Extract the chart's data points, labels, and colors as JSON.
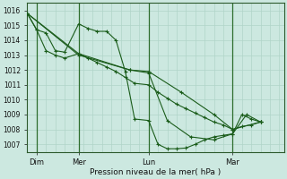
{
  "xlabel": "Pression niveau de la mer( hPa )",
  "background_color": "#cce8e0",
  "grid_color": "#b0d4c8",
  "line_color": "#1a5c1a",
  "ylim": [
    1006.5,
    1016.5
  ],
  "yticks": [
    1007,
    1008,
    1009,
    1010,
    1011,
    1012,
    1013,
    1014,
    1015,
    1016
  ],
  "day_labels": [
    "Dim",
    "Mer",
    "Lun",
    "Mar"
  ],
  "day_positions": [
    8,
    44,
    104,
    176
  ],
  "vline_positions": [
    8,
    44,
    104,
    176
  ],
  "xlim": [
    0,
    220
  ],
  "line1_x": [
    0,
    8,
    16,
    24,
    32,
    44,
    52,
    60,
    68,
    76,
    84,
    92,
    104,
    112,
    120,
    128,
    136,
    144,
    152,
    160,
    168,
    176,
    184,
    192,
    200
  ],
  "line1_y": [
    1015.8,
    1014.7,
    1014.5,
    1013.3,
    1013.2,
    1015.1,
    1014.8,
    1014.6,
    1014.6,
    1014.0,
    1011.9,
    1008.7,
    1008.6,
    1007.0,
    1006.7,
    1006.7,
    1006.75,
    1007.0,
    1007.3,
    1007.5,
    1007.6,
    1007.7,
    1009.0,
    1008.7,
    1008.5
  ],
  "line2_x": [
    0,
    8,
    16,
    24,
    32,
    44,
    52,
    60,
    68,
    76,
    84,
    92,
    104,
    112,
    120,
    128,
    136,
    144,
    152,
    160,
    168,
    176,
    184,
    192,
    200
  ],
  "line2_y": [
    1015.8,
    1014.7,
    1013.3,
    1013.0,
    1012.8,
    1013.1,
    1012.8,
    1012.5,
    1012.2,
    1011.9,
    1011.5,
    1011.1,
    1011.0,
    1010.5,
    1010.1,
    1009.7,
    1009.4,
    1009.1,
    1008.8,
    1008.5,
    1008.3,
    1008.0,
    1008.2,
    1008.3,
    1008.5
  ],
  "line3_x": [
    0,
    44,
    88,
    104,
    132,
    160,
    176,
    200
  ],
  "line3_y": [
    1015.8,
    1013.1,
    1012.0,
    1011.9,
    1010.5,
    1009.0,
    1008.0,
    1008.5
  ],
  "line4_x": [
    0,
    44,
    88,
    104,
    120,
    140,
    160,
    176,
    188,
    200
  ],
  "line4_y": [
    1015.8,
    1013.0,
    1012.0,
    1011.8,
    1008.6,
    1007.5,
    1007.3,
    1007.7,
    1009.0,
    1008.5
  ]
}
